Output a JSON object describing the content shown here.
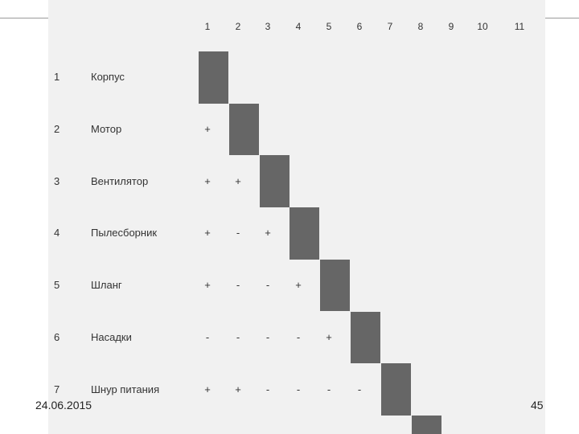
{
  "matrix": {
    "columns": [
      "1",
      "2",
      "3",
      "4",
      "5",
      "6",
      "7",
      "8",
      "9",
      "10",
      "11"
    ],
    "rows": [
      {
        "num": "1",
        "name": "Корпус",
        "marks": []
      },
      {
        "num": "2",
        "name": "Мотор",
        "marks": [
          "+"
        ]
      },
      {
        "num": "3",
        "name": "Вентилятор",
        "marks": [
          "+",
          "+"
        ]
      },
      {
        "num": "4",
        "name": "Пылесборник",
        "marks": [
          "+",
          "-",
          "+"
        ]
      },
      {
        "num": "5",
        "name": "Шланг",
        "marks": [
          "+",
          "-",
          "-",
          "+"
        ]
      },
      {
        "num": "6",
        "name": "Насадки",
        "marks": [
          "-",
          "-",
          "-",
          "-",
          "+"
        ]
      },
      {
        "num": "7",
        "name": "Шнур питания",
        "marks": [
          "+",
          "+",
          "-",
          "-",
          "-",
          "-"
        ]
      }
    ]
  },
  "footer": {
    "date": "24.06.2015",
    "page": "45"
  }
}
